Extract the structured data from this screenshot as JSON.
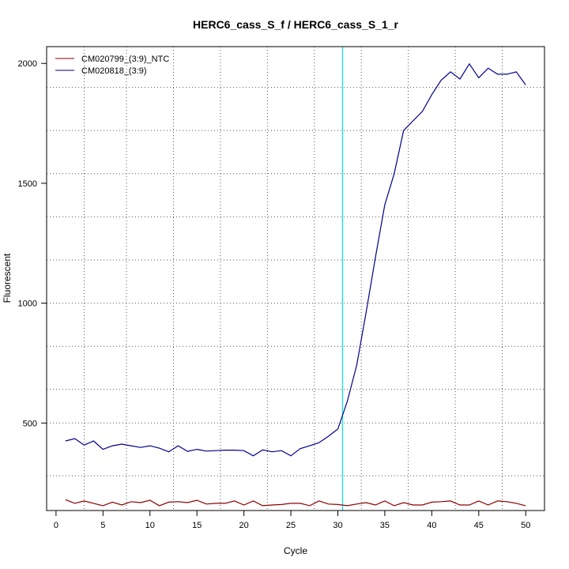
{
  "colors": {
    "background": "#ffffff",
    "axis": "#000000",
    "grid": "#555555",
    "threshold": "#00e5e5"
  },
  "chart_data": {
    "type": "line",
    "title": "HERC6_cass_S_f / HERC6_cass_S_1_r",
    "xlabel": "Cycle",
    "ylabel": "Fluorescent",
    "xlim": [
      -1.0,
      52.0
    ],
    "ylim": [
      135,
      2070
    ],
    "x_ticks": [
      0,
      5,
      10,
      15,
      20,
      25,
      30,
      35,
      40,
      45,
      50
    ],
    "y_ticks": [
      500,
      1000,
      1500,
      2000
    ],
    "x_grid": [
      3,
      7.5,
      12.5,
      17.5,
      22.5,
      27.5,
      32.5,
      37.5,
      42.5,
      47.5
    ],
    "y_grid": [
      280,
      500,
      640,
      820,
      1000,
      1180,
      1360,
      1540,
      1720,
      1900
    ],
    "grid": true,
    "legend_position": "top-left",
    "threshold_x": 30.5,
    "x": [
      1,
      2,
      3,
      4,
      5,
      6,
      7,
      8,
      9,
      10,
      11,
      12,
      13,
      14,
      15,
      16,
      17,
      18,
      19,
      20,
      21,
      22,
      23,
      24,
      25,
      26,
      27,
      28,
      29,
      30,
      31,
      32,
      33,
      34,
      35,
      36,
      37,
      38,
      39,
      40,
      41,
      42,
      43,
      44,
      45,
      46,
      47,
      48,
      49,
      50
    ],
    "series": [
      {
        "name": "CM020799_(3:9)_NTC",
        "color": "#8b0000",
        "values": [
          180,
          165,
          175,
          165,
          155,
          170,
          158,
          172,
          168,
          178,
          155,
          170,
          172,
          168,
          178,
          162,
          165,
          165,
          175,
          158,
          175,
          155,
          158,
          160,
          165,
          165,
          155,
          175,
          162,
          160,
          155,
          162,
          168,
          158,
          175,
          155,
          168,
          158,
          158,
          170,
          172,
          175,
          158,
          158,
          175,
          158,
          175,
          172,
          165,
          155
        ]
      },
      {
        "name": "CM020818_(3:9)",
        "color": "#00008b",
        "values": [
          425,
          435,
          408,
          425,
          390,
          405,
          412,
          405,
          398,
          405,
          395,
          380,
          405,
          382,
          390,
          383,
          385,
          387,
          387,
          385,
          363,
          388,
          380,
          385,
          363,
          393,
          405,
          418,
          445,
          475,
          590,
          740,
          960,
          1190,
          1410,
          1540,
          1720,
          1760,
          1800,
          1870,
          1930,
          1965,
          1935,
          1998,
          1940,
          1980,
          1955,
          1955,
          1965,
          1910
        ]
      }
    ]
  }
}
